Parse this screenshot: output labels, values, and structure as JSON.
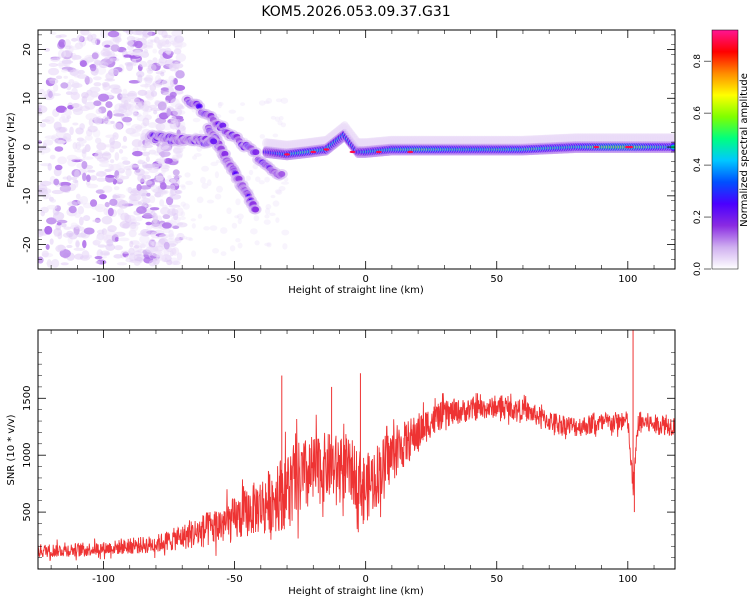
{
  "title": "KOM5.2026.053.09.37.G31",
  "chart_data": [
    {
      "type": "heatmap",
      "xlabel": "Height of straight line (km)",
      "ylabel": "Frequency (Hz)",
      "xlim": [
        -125,
        118
      ],
      "ylim": [
        -25,
        24
      ],
      "xticks": [
        -100,
        -50,
        0,
        50,
        100
      ],
      "yticks": [
        -20,
        -10,
        0,
        10,
        20
      ],
      "colorbar": {
        "label": "Normalized spectral amplitude",
        "range": [
          0.0,
          0.92
        ],
        "ticks": [
          "0.0",
          "0.2",
          "0.4",
          "0.6",
          "0.8"
        ],
        "tick_values": [
          0.0,
          0.2,
          0.4,
          0.6,
          0.8
        ],
        "colormap": [
          "#ffffff",
          "#d0b0f0",
          "#8a2be2",
          "#4a00ff",
          "#0050ff",
          "#00c8ff",
          "#00ff80",
          "#7fff00",
          "#ffff00",
          "#ff8c00",
          "#ff0000",
          "#ff1493"
        ]
      },
      "features": {
        "scatter_region_x": [
          -125,
          -70
        ],
        "scatter_region_y": [
          -24,
          24
        ],
        "descending_streaks": [
          {
            "x": [
              -68,
              -32
            ],
            "y": [
              10,
              -6
            ]
          },
          {
            "x": [
              -60,
              -42
            ],
            "y": [
              4,
              -13
            ]
          },
          {
            "x": [
              -82,
              -58
            ],
            "y": [
              2,
              1
            ]
          }
        ],
        "main_band": [
          {
            "x": -38,
            "y": -1,
            "amp": 0.3
          },
          {
            "x": -30,
            "y": -1.5,
            "amp": 0.45
          },
          {
            "x": -22,
            "y": -1,
            "amp": 0.55
          },
          {
            "x": -15,
            "y": -0.5,
            "amp": 0.5
          },
          {
            "x": -8,
            "y": 2.5,
            "amp": 0.4
          },
          {
            "x": -3,
            "y": -1,
            "amp": 0.35
          },
          {
            "x": 0,
            "y": -1,
            "amp": 0.45
          },
          {
            "x": 10,
            "y": -0.5,
            "amp": 0.5
          },
          {
            "x": 20,
            "y": -0.5,
            "amp": 0.6
          },
          {
            "x": 40,
            "y": -0.5,
            "amp": 0.5
          },
          {
            "x": 60,
            "y": -0.5,
            "amp": 0.55
          },
          {
            "x": 80,
            "y": 0,
            "amp": 0.5
          },
          {
            "x": 90,
            "y": 0,
            "amp": 0.65
          },
          {
            "x": 100,
            "y": 0,
            "amp": 0.7
          },
          {
            "x": 110,
            "y": 0,
            "amp": 0.55
          },
          {
            "x": 118,
            "y": 0,
            "amp": 0.5
          }
        ]
      }
    },
    {
      "type": "line",
      "xlabel": "Height of straight line (km)",
      "ylabel": "SNR (10 * v/v)",
      "xlim": [
        -125,
        118
      ],
      "ylim": [
        0,
        2100
      ],
      "xticks": [
        -100,
        -50,
        0,
        50,
        100
      ],
      "yticks": [
        500,
        1000,
        1500
      ],
      "color": "#ee3333",
      "x": [
        -125,
        -110,
        -100,
        -90,
        -80,
        -70,
        -60,
        -50,
        -45,
        -40,
        -35,
        -30,
        -25,
        -20,
        -15,
        -10,
        -5,
        0,
        5,
        10,
        15,
        20,
        25,
        30,
        40,
        50,
        60,
        70,
        80,
        90,
        100,
        102,
        104,
        110,
        118
      ],
      "y": [
        160,
        170,
        180,
        200,
        220,
        280,
        350,
        430,
        500,
        560,
        620,
        700,
        780,
        850,
        900,
        900,
        850,
        700,
        850,
        1000,
        1100,
        1200,
        1300,
        1360,
        1400,
        1420,
        1400,
        1300,
        1250,
        1280,
        1300,
        700,
        1300,
        1270,
        1260
      ],
      "noise": [
        60,
        60,
        60,
        70,
        80,
        110,
        160,
        200,
        220,
        250,
        300,
        350,
        350,
        330,
        300,
        280,
        280,
        300,
        280,
        240,
        200,
        170,
        140,
        120,
        100,
        90,
        90,
        90,
        90,
        90,
        90,
        100,
        90,
        90,
        90
      ],
      "peaks": [
        {
          "x": -32,
          "y": 1700
        },
        {
          "x": -13,
          "y": 1600
        },
        {
          "x": -2,
          "y": 1720
        },
        {
          "x": 102,
          "y": 2100
        },
        {
          "x": 102.5,
          "y": 500
        }
      ]
    }
  ]
}
